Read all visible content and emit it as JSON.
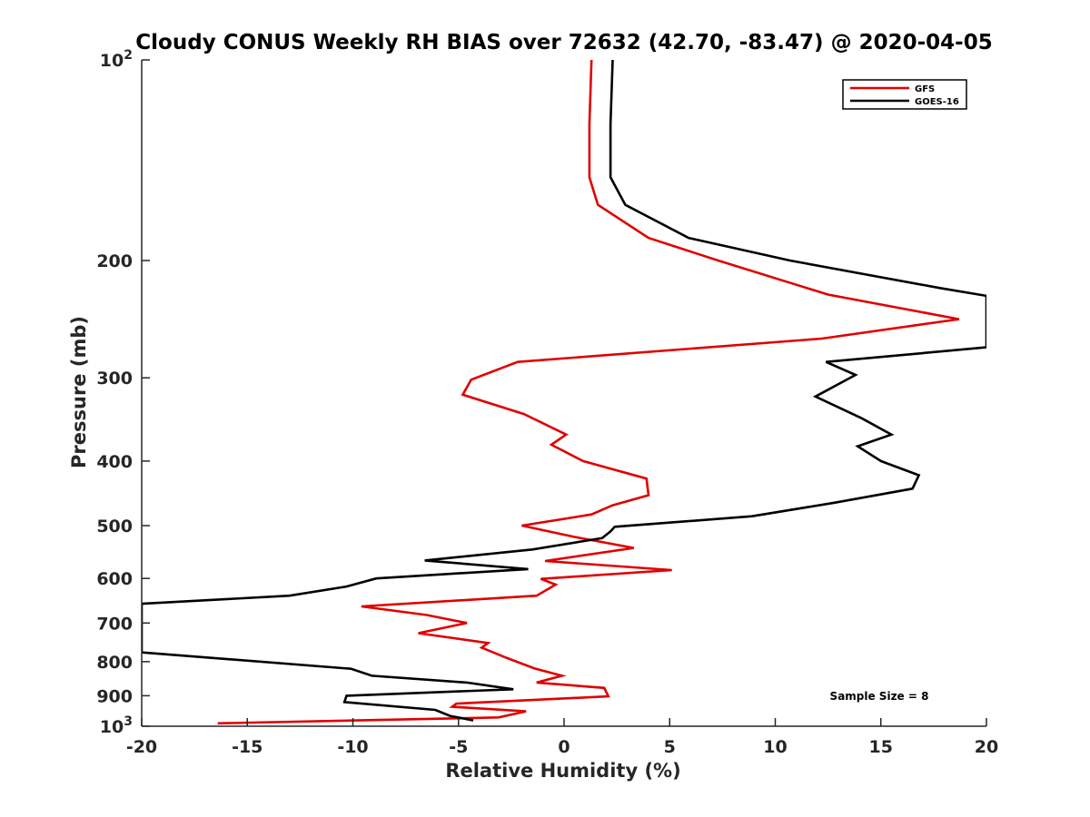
{
  "chart_data": {
    "type": "line",
    "title": "Cloudy CONUS Weekly RH BIAS over 72632 (42.70, -83.47) @ 2020-04-05",
    "xlabel": "Relative Humidity (%)",
    "ylabel": "Pressure (mb)",
    "xlim": [
      -20,
      20
    ],
    "ylim": [
      100,
      1000
    ],
    "y_scale": "log",
    "y_reversed": true,
    "x_ticks": [
      {
        "value": -20,
        "label": "-20"
      },
      {
        "value": -15,
        "label": "-15"
      },
      {
        "value": -10,
        "label": "-10"
      },
      {
        "value": -5,
        "label": "-5"
      },
      {
        "value": 0,
        "label": "0"
      },
      {
        "value": 5,
        "label": "5"
      },
      {
        "value": 10,
        "label": "10"
      },
      {
        "value": 15,
        "label": "15"
      },
      {
        "value": 20,
        "label": "20"
      }
    ],
    "y_ticks": [
      {
        "value": 100,
        "label": "",
        "base": "10",
        "exp": "2"
      },
      {
        "value": 200,
        "label": "200"
      },
      {
        "value": 300,
        "label": "300"
      },
      {
        "value": 400,
        "label": "400"
      },
      {
        "value": 500,
        "label": "500"
      },
      {
        "value": 600,
        "label": "600"
      },
      {
        "value": 700,
        "label": "700"
      },
      {
        "value": 800,
        "label": "800"
      },
      {
        "value": 900,
        "label": "900"
      },
      {
        "value": 1000,
        "label": "",
        "base": "10",
        "exp": "3"
      }
    ],
    "grid": false,
    "legend_position": "top-right",
    "series": [
      {
        "name": "GFS",
        "color": "#e00000",
        "points": [
          [
            1.3,
            100
          ],
          [
            1.2,
            125
          ],
          [
            1.2,
            150
          ],
          [
            1.6,
            165
          ],
          [
            4.0,
            185
          ],
          [
            7.3,
            200
          ],
          [
            12.5,
            225
          ],
          [
            18.7,
            245
          ],
          [
            12.2,
            262
          ],
          [
            -2.2,
            284
          ],
          [
            -4.4,
            302
          ],
          [
            -4.8,
            318
          ],
          [
            -1.9,
            340
          ],
          [
            0.1,
            365
          ],
          [
            -0.6,
            378
          ],
          [
            0.9,
            400
          ],
          [
            3.9,
            425
          ],
          [
            4.0,
            450
          ],
          [
            2.3,
            466
          ],
          [
            1.3,
            481
          ],
          [
            -2.0,
            500
          ],
          [
            0.5,
            520
          ],
          [
            3.3,
            540
          ],
          [
            -0.9,
            565
          ],
          [
            5.1,
            583
          ],
          [
            -1.1,
            601
          ],
          [
            -0.4,
            613
          ],
          [
            -1.3,
            637
          ],
          [
            -9.6,
            661
          ],
          [
            -6.5,
            681
          ],
          [
            -4.6,
            700
          ],
          [
            -6.9,
            725
          ],
          [
            -3.6,
            750
          ],
          [
            -3.9,
            762
          ],
          [
            -2.7,
            790
          ],
          [
            -1.4,
            819
          ],
          [
            -0.1,
            840
          ],
          [
            -1.3,
            860
          ],
          [
            1.9,
            876
          ],
          [
            2.1,
            902
          ],
          [
            -5.1,
            925
          ],
          [
            -5.3,
            935
          ],
          [
            -1.8,
            950
          ],
          [
            -3.1,
            970
          ],
          [
            -16.4,
            990
          ]
        ]
      },
      {
        "name": "GOES-16",
        "color": "#000000",
        "points": [
          [
            2.3,
            100
          ],
          [
            2.2,
            125
          ],
          [
            2.2,
            150
          ],
          [
            2.9,
            165
          ],
          [
            5.9,
            185
          ],
          [
            10.7,
            200
          ],
          [
            17.8,
            220
          ],
          [
            20.0,
            226
          ],
          [
            20.0,
            270
          ],
          [
            12.4,
            284
          ],
          [
            13.8,
            297
          ],
          [
            11.9,
            320
          ],
          [
            14.1,
            345
          ],
          [
            15.5,
            365
          ],
          [
            13.9,
            380
          ],
          [
            15.0,
            400
          ],
          [
            16.8,
            420
          ],
          [
            16.5,
            440
          ],
          [
            12.8,
            462
          ],
          [
            8.9,
            484
          ],
          [
            2.4,
            502
          ],
          [
            2.2,
            510
          ],
          [
            1.8,
            522
          ],
          [
            -1.5,
            543
          ],
          [
            -6.6,
            564
          ],
          [
            -1.7,
            581
          ],
          [
            -8.9,
            600
          ],
          [
            -10.3,
            617
          ],
          [
            -13.0,
            637
          ],
          [
            -20.0,
            655
          ],
          [
            -20.0,
            775
          ],
          [
            -10.1,
            820
          ],
          [
            -9.1,
            840
          ],
          [
            -4.6,
            860
          ],
          [
            -2.4,
            880
          ],
          [
            -10.3,
            900
          ],
          [
            -10.4,
            920
          ],
          [
            -6.1,
            945
          ],
          [
            -5.4,
            965
          ],
          [
            -4.3,
            980
          ]
        ]
      }
    ],
    "annotations": [
      "Sample Size = 8"
    ]
  }
}
